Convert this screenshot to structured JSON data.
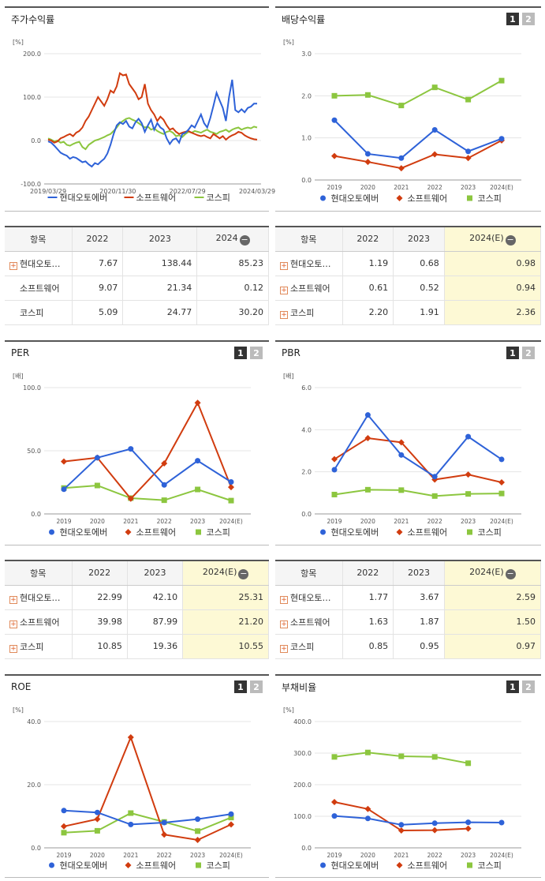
{
  "series_names": [
    "현대오토에버",
    "소프트웨어",
    "코스피"
  ],
  "colors": {
    "s0": "#2e62d8",
    "s1": "#d13c0f",
    "s2": "#8cc63f",
    "grid": "#e5e5e5",
    "highlight": "#fdf9d5"
  },
  "panels": {
    "stock": {
      "title": "주가수익률"
    },
    "dividend": {
      "title": "배당수익률",
      "page1": "1",
      "page2": "2"
    },
    "per": {
      "title": "PER",
      "page1": "1",
      "page2": "2"
    },
    "pbr": {
      "title": "PBR",
      "page1": "1",
      "page2": "2"
    },
    "roe": {
      "title": "ROE",
      "page1": "1",
      "page2": "2"
    },
    "debt": {
      "title": "부채비율",
      "page1": "1",
      "page2": "2"
    }
  },
  "tables": {
    "stock": {
      "headers": [
        "항목",
        "2022",
        "2023",
        "2024"
      ],
      "rows": [
        {
          "name": "현대오토…",
          "v": [
            "7.67",
            "138.44",
            "85.23"
          ],
          "plus": true
        },
        {
          "name": "소프트웨어",
          "v": [
            "9.07",
            "21.34",
            "0.12"
          ],
          "plus": false
        },
        {
          "name": "코스피",
          "v": [
            "5.09",
            "24.77",
            "30.20"
          ],
          "plus": false
        }
      ]
    },
    "dividend": {
      "headers": [
        "항목",
        "2022",
        "2023",
        "2024(E)"
      ],
      "rows": [
        {
          "name": "현대오토…",
          "v": [
            "1.19",
            "0.68",
            "0.98"
          ],
          "plus": true
        },
        {
          "name": "소프트웨어",
          "v": [
            "0.61",
            "0.52",
            "0.94"
          ],
          "plus": true
        },
        {
          "name": "코스피",
          "v": [
            "2.20",
            "1.91",
            "2.36"
          ],
          "plus": true
        }
      ]
    },
    "per": {
      "headers": [
        "항목",
        "2022",
        "2023",
        "2024(E)"
      ],
      "rows": [
        {
          "name": "현대오토…",
          "v": [
            "22.99",
            "42.10",
            "25.31"
          ],
          "plus": true
        },
        {
          "name": "소프트웨어",
          "v": [
            "39.98",
            "87.99",
            "21.20"
          ],
          "plus": true
        },
        {
          "name": "코스피",
          "v": [
            "10.85",
            "19.36",
            "10.55"
          ],
          "plus": true
        }
      ]
    },
    "pbr": {
      "headers": [
        "항목",
        "2022",
        "2023",
        "2024(E)"
      ],
      "rows": [
        {
          "name": "현대오토…",
          "v": [
            "1.77",
            "3.67",
            "2.59"
          ],
          "plus": true
        },
        {
          "name": "소프트웨어",
          "v": [
            "1.63",
            "1.87",
            "1.50"
          ],
          "plus": true
        },
        {
          "name": "코스피",
          "v": [
            "0.85",
            "0.95",
            "0.97"
          ],
          "plus": true
        }
      ]
    }
  },
  "chart_data": [
    {
      "id": "stock",
      "type": "line",
      "unit": "[%]",
      "ylim": [
        -100,
        200
      ],
      "yticks": [
        "200.0",
        "100.0",
        "0.0",
        "-100.0"
      ],
      "xticks": [
        "2019/03/29",
        "2020/11/30",
        "2022/07/29",
        "2024/03/29"
      ],
      "series": [
        {
          "name": "현대오토에버",
          "values": [
            -2,
            -5,
            -12,
            -20,
            -28,
            -32,
            -35,
            -42,
            -38,
            -40,
            -45,
            -50,
            -48,
            -55,
            -60,
            -52,
            -55,
            -48,
            -42,
            -30,
            -10,
            15,
            35,
            42,
            38,
            45,
            32,
            28,
            42,
            50,
            40,
            20,
            35,
            48,
            25,
            40,
            30,
            25,
            5,
            -8,
            2,
            5,
            -5,
            15,
            18,
            25,
            35,
            30,
            45,
            60,
            40,
            30,
            52,
            80,
            110,
            92,
            75,
            45,
            100,
            140,
            70,
            65,
            72,
            65,
            75,
            78,
            85,
            85
          ]
        },
        {
          "name": "소프트웨어",
          "values": [
            2,
            0,
            -5,
            -2,
            5,
            8,
            12,
            15,
            10,
            18,
            22,
            30,
            45,
            55,
            70,
            85,
            100,
            90,
            80,
            95,
            115,
            110,
            125,
            155,
            150,
            152,
            130,
            120,
            110,
            95,
            100,
            130,
            85,
            70,
            60,
            45,
            55,
            48,
            35,
            25,
            28,
            20,
            15,
            18,
            20,
            22,
            18,
            15,
            12,
            10,
            12,
            8,
            5,
            15,
            10,
            5,
            10,
            2,
            8,
            12,
            15,
            20,
            18,
            12,
            8,
            5,
            3,
            2
          ]
        },
        {
          "name": "코스피",
          "values": [
            5,
            2,
            -2,
            0,
            -5,
            -3,
            -10,
            -12,
            -8,
            -5,
            -3,
            -15,
            -20,
            -10,
            -5,
            0,
            2,
            5,
            8,
            12,
            15,
            22,
            30,
            40,
            45,
            50,
            52,
            48,
            45,
            40,
            35,
            30,
            32,
            25,
            28,
            22,
            18,
            15,
            20,
            22,
            18,
            10,
            12,
            8,
            15,
            20,
            18,
            22,
            20,
            18,
            22,
            25,
            20,
            18,
            15,
            20,
            22,
            25,
            20,
            25,
            28,
            30,
            25,
            28,
            30,
            28,
            32,
            30
          ]
        }
      ]
    },
    {
      "id": "dividend",
      "type": "line",
      "unit": "[%]",
      "ylim": [
        0,
        3
      ],
      "yticks": [
        "3.0",
        "2.0",
        "1.0",
        "0.0"
      ],
      "categories": [
        "2019",
        "2020",
        "2021",
        "2022",
        "2023",
        "2024(E)"
      ],
      "series": [
        {
          "name": "현대오토에버",
          "values": [
            1.42,
            0.62,
            0.52,
            1.19,
            0.68,
            0.98
          ]
        },
        {
          "name": "소프트웨어",
          "values": [
            0.57,
            0.43,
            0.28,
            0.61,
            0.52,
            0.94
          ]
        },
        {
          "name": "코스피",
          "values": [
            2.0,
            2.02,
            1.77,
            2.2,
            1.91,
            2.36
          ]
        }
      ]
    },
    {
      "id": "per",
      "type": "line",
      "unit": "[배]",
      "ylim": [
        0,
        100
      ],
      "yticks": [
        "100.0",
        "50.0",
        "0.0"
      ],
      "categories": [
        "2019",
        "2020",
        "2021",
        "2022",
        "2023",
        "2024(E)"
      ],
      "series": [
        {
          "name": "현대오토에버",
          "values": [
            19.5,
            44.5,
            51.5,
            22.99,
            42.1,
            25.31
          ]
        },
        {
          "name": "소프트웨어",
          "values": [
            41.5,
            44.5,
            12.0,
            39.98,
            87.99,
            21.2
          ]
        },
        {
          "name": "코스피",
          "values": [
            20.5,
            22.5,
            12.5,
            10.85,
            19.36,
            10.55
          ]
        }
      ]
    },
    {
      "id": "pbr",
      "type": "line",
      "unit": "[배]",
      "ylim": [
        0,
        6
      ],
      "yticks": [
        "6.0",
        "4.0",
        "2.0",
        "0.0"
      ],
      "categories": [
        "2019",
        "2020",
        "2021",
        "2022",
        "2023",
        "2024(E)"
      ],
      "series": [
        {
          "name": "현대오토에버",
          "values": [
            2.1,
            4.7,
            2.8,
            1.77,
            3.67,
            2.59
          ]
        },
        {
          "name": "소프트웨어",
          "values": [
            2.6,
            3.6,
            3.4,
            1.63,
            1.87,
            1.5
          ]
        },
        {
          "name": "코스피",
          "values": [
            0.92,
            1.15,
            1.13,
            0.85,
            0.95,
            0.97
          ]
        }
      ]
    },
    {
      "id": "roe",
      "type": "line",
      "unit": "[%]",
      "ylim": [
        0,
        40
      ],
      "yticks": [
        "40.0",
        "20.0",
        "0.0"
      ],
      "categories": [
        "2019",
        "2020",
        "2021",
        "2022",
        "2023",
        "2024(E)"
      ],
      "series": [
        {
          "name": "현대오토에버",
          "values": [
            11.8,
            11.2,
            7.4,
            8.0,
            9.1,
            10.7
          ]
        },
        {
          "name": "소프트웨어",
          "values": [
            6.8,
            9.1,
            35.0,
            4.2,
            2.5,
            7.4
          ]
        },
        {
          "name": "코스피",
          "values": [
            4.8,
            5.4,
            11.0,
            8.2,
            5.3,
            9.6
          ]
        }
      ]
    },
    {
      "id": "debt",
      "type": "line",
      "unit": "[%]",
      "ylim": [
        0,
        400
      ],
      "yticks": [
        "400.0",
        "300.0",
        "200.0",
        "100.0",
        "0.0"
      ],
      "categories": [
        "2019",
        "2020",
        "2021",
        "2022",
        "2023",
        "2024(E)"
      ],
      "series": [
        {
          "name": "현대오토에버",
          "values": [
            101,
            93,
            73,
            78,
            81,
            80
          ]
        },
        {
          "name": "소프트웨어",
          "values": [
            145,
            123,
            55,
            56,
            61,
            null
          ]
        },
        {
          "name": "코스피",
          "values": [
            288,
            302,
            290,
            288,
            268,
            null
          ]
        }
      ]
    }
  ]
}
